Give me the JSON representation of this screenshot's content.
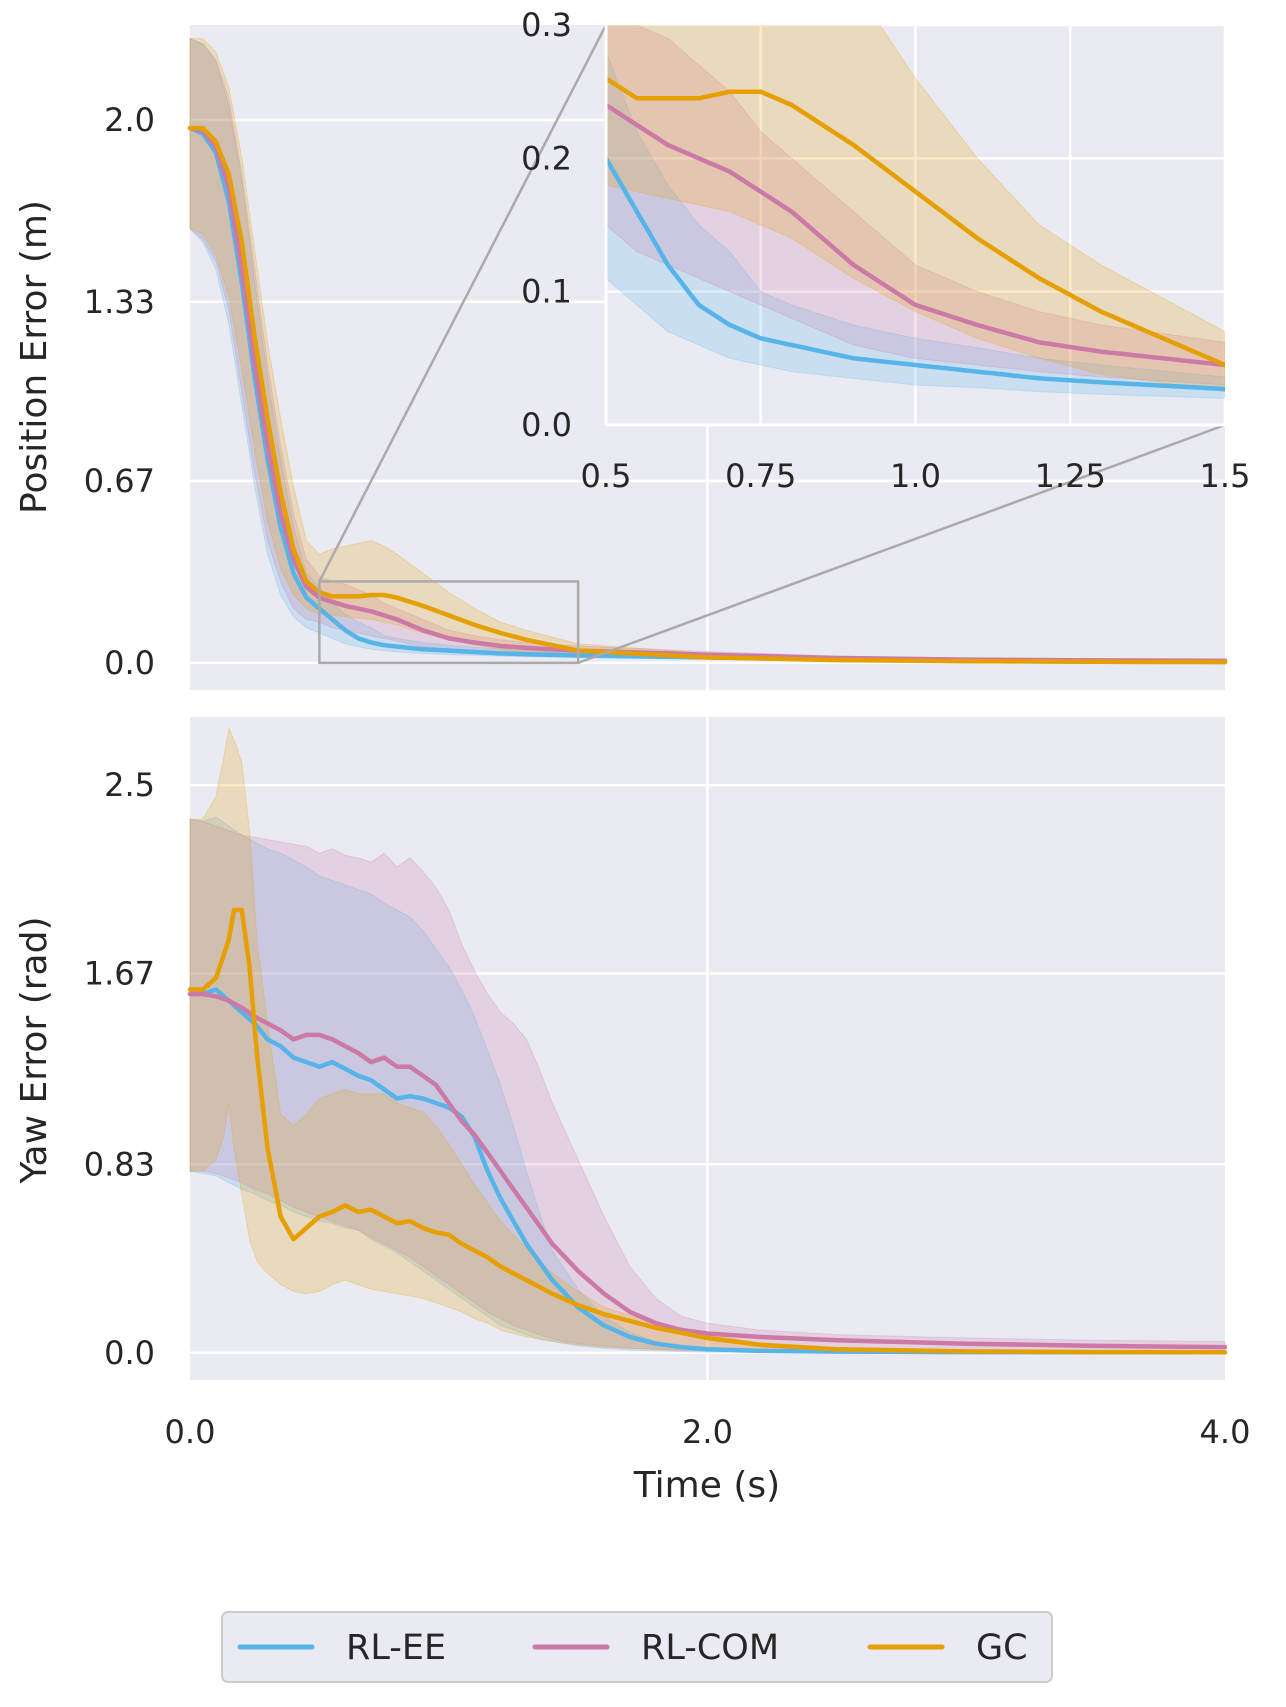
{
  "chart_data": [
    {
      "type": "line",
      "panel": "top",
      "ylabel": "Position Error (m)",
      "xlabel": "",
      "xlim": [
        0,
        4
      ],
      "ylim": [
        -0.1,
        2.35
      ],
      "yticks": [
        "2.0",
        "1.33",
        "0.67",
        "0.0"
      ],
      "ytick_values": [
        2.0,
        1.33,
        0.67,
        0.0
      ],
      "grid": true,
      "series": [
        {
          "name": "RL-EE",
          "color": "#56B4E9",
          "x": [
            0,
            0.05,
            0.1,
            0.15,
            0.2,
            0.25,
            0.3,
            0.35,
            0.4,
            0.45,
            0.5,
            0.55,
            0.6,
            0.65,
            0.7,
            0.75,
            0.8,
            0.9,
            1.0,
            1.1,
            1.2,
            1.3,
            1.5,
            2.0,
            2.5,
            3.0,
            3.5,
            4.0
          ],
          "y": [
            1.97,
            1.95,
            1.88,
            1.7,
            1.4,
            1.05,
            0.75,
            0.5,
            0.33,
            0.24,
            0.2,
            0.16,
            0.12,
            0.09,
            0.075,
            0.065,
            0.06,
            0.05,
            0.045,
            0.04,
            0.035,
            0.032,
            0.027,
            0.02,
            0.012,
            0.007,
            0.004,
            0.003
          ],
          "lower": [
            1.6,
            1.55,
            1.45,
            1.25,
            0.95,
            0.65,
            0.4,
            0.25,
            0.17,
            0.13,
            0.11,
            0.09,
            0.07,
            0.06,
            0.05,
            0.045,
            0.04,
            0.035,
            0.03,
            0.028,
            0.025,
            0.023,
            0.02,
            0.015,
            0.008,
            0.004,
            0.002,
            0.001
          ],
          "upper": [
            2.3,
            2.28,
            2.22,
            2.05,
            1.78,
            1.4,
            1.05,
            0.75,
            0.5,
            0.33,
            0.28,
            0.22,
            0.18,
            0.15,
            0.13,
            0.1,
            0.09,
            0.075,
            0.065,
            0.058,
            0.05,
            0.045,
            0.036,
            0.026,
            0.016,
            0.01,
            0.006,
            0.005
          ]
        },
        {
          "name": "RL-COM",
          "color": "#CC79A7",
          "x": [
            0,
            0.05,
            0.1,
            0.15,
            0.2,
            0.25,
            0.3,
            0.35,
            0.4,
            0.45,
            0.5,
            0.55,
            0.6,
            0.65,
            0.7,
            0.75,
            0.8,
            0.9,
            1.0,
            1.1,
            1.2,
            1.3,
            1.5,
            2.0,
            2.5,
            3.0,
            3.5,
            4.0
          ],
          "y": [
            1.97,
            1.96,
            1.9,
            1.75,
            1.45,
            1.1,
            0.8,
            0.55,
            0.38,
            0.28,
            0.24,
            0.225,
            0.21,
            0.2,
            0.19,
            0.175,
            0.16,
            0.12,
            0.09,
            0.075,
            0.062,
            0.055,
            0.045,
            0.03,
            0.018,
            0.012,
            0.009,
            0.008
          ],
          "lower": [
            1.6,
            1.56,
            1.48,
            1.3,
            1.0,
            0.7,
            0.45,
            0.3,
            0.2,
            0.16,
            0.15,
            0.13,
            0.12,
            0.11,
            0.1,
            0.09,
            0.08,
            0.06,
            0.05,
            0.045,
            0.04,
            0.036,
            0.03,
            0.02,
            0.012,
            0.008,
            0.006,
            0.005
          ],
          "upper": [
            2.3,
            2.28,
            2.22,
            2.08,
            1.8,
            1.45,
            1.1,
            0.8,
            0.55,
            0.38,
            0.32,
            0.3,
            0.29,
            0.27,
            0.25,
            0.22,
            0.2,
            0.16,
            0.12,
            0.1,
            0.085,
            0.075,
            0.062,
            0.042,
            0.025,
            0.017,
            0.013,
            0.011
          ]
        },
        {
          "name": "GC",
          "color": "#E69F00",
          "x": [
            0,
            0.05,
            0.1,
            0.15,
            0.2,
            0.25,
            0.3,
            0.35,
            0.4,
            0.45,
            0.5,
            0.55,
            0.6,
            0.65,
            0.7,
            0.75,
            0.8,
            0.9,
            1.0,
            1.1,
            1.2,
            1.3,
            1.5,
            2.0,
            2.5,
            3.0,
            3.5,
            4.0
          ],
          "y": [
            1.97,
            1.97,
            1.92,
            1.8,
            1.55,
            1.2,
            0.9,
            0.63,
            0.42,
            0.3,
            0.26,
            0.245,
            0.245,
            0.245,
            0.25,
            0.25,
            0.24,
            0.21,
            0.175,
            0.14,
            0.11,
            0.085,
            0.045,
            0.02,
            0.01,
            0.006,
            0.004,
            0.003
          ],
          "lower": [
            1.6,
            1.58,
            1.5,
            1.35,
            1.08,
            0.78,
            0.52,
            0.35,
            0.25,
            0.2,
            0.18,
            0.175,
            0.17,
            0.165,
            0.16,
            0.15,
            0.14,
            0.11,
            0.085,
            0.065,
            0.05,
            0.038,
            0.025,
            0.012,
            0.006,
            0.004,
            0.002,
            0.001
          ],
          "upper": [
            2.3,
            2.3,
            2.25,
            2.12,
            1.86,
            1.52,
            1.18,
            0.9,
            0.65,
            0.45,
            0.4,
            0.42,
            0.43,
            0.44,
            0.45,
            0.43,
            0.4,
            0.33,
            0.26,
            0.2,
            0.15,
            0.12,
            0.07,
            0.035,
            0.02,
            0.012,
            0.008,
            0.006
          ]
        }
      ]
    },
    {
      "type": "line",
      "panel": "top-inset",
      "xlim": [
        0.5,
        1.5
      ],
      "ylim": [
        0.0,
        0.3
      ],
      "xticks": [
        "0.5",
        "0.75",
        "1.0",
        "1.25",
        "1.5"
      ],
      "xtick_values": [
        0.5,
        0.75,
        1.0,
        1.25,
        1.5
      ],
      "yticks": [
        "0.3",
        "0.2",
        "0.1",
        "0.0"
      ],
      "ytick_values": [
        0.3,
        0.2,
        0.1,
        0.0
      ],
      "zoom_region": {
        "x": [
          0.5,
          1.5
        ],
        "y": [
          0.0,
          0.3
        ]
      },
      "grid": true
    },
    {
      "type": "line",
      "panel": "bottom",
      "ylabel": "Yaw Error (rad)",
      "xlabel": "Time (s)",
      "xlim": [
        0,
        4
      ],
      "ylim": [
        -0.12,
        2.8
      ],
      "xticks": [
        "0.0",
        "2.0",
        "4.0"
      ],
      "xtick_values": [
        0,
        2,
        4
      ],
      "yticks": [
        "2.5",
        "1.67",
        "0.83",
        "0.0"
      ],
      "ytick_values": [
        2.5,
        1.67,
        0.83,
        0.0
      ],
      "grid": true,
      "series": [
        {
          "name": "RL-EE",
          "color": "#56B4E9",
          "x": [
            0,
            0.05,
            0.1,
            0.15,
            0.2,
            0.25,
            0.3,
            0.35,
            0.4,
            0.45,
            0.5,
            0.55,
            0.6,
            0.65,
            0.7,
            0.75,
            0.8,
            0.85,
            0.9,
            0.95,
            1.0,
            1.05,
            1.1,
            1.15,
            1.2,
            1.25,
            1.3,
            1.35,
            1.4,
            1.5,
            1.6,
            1.7,
            1.8,
            1.9,
            2.0,
            2.2,
            2.5,
            3.0,
            3.5,
            4.0
          ],
          "y": [
            1.58,
            1.58,
            1.6,
            1.55,
            1.5,
            1.45,
            1.38,
            1.35,
            1.3,
            1.28,
            1.26,
            1.28,
            1.25,
            1.22,
            1.2,
            1.16,
            1.12,
            1.13,
            1.12,
            1.1,
            1.08,
            1.04,
            0.95,
            0.8,
            0.68,
            0.58,
            0.48,
            0.4,
            0.32,
            0.2,
            0.12,
            0.07,
            0.04,
            0.025,
            0.015,
            0.008,
            0.005,
            0.003,
            0.002,
            0.002
          ],
          "lower": [
            0.8,
            0.79,
            0.78,
            0.75,
            0.72,
            0.7,
            0.67,
            0.65,
            0.62,
            0.6,
            0.58,
            0.57,
            0.55,
            0.54,
            0.5,
            0.47,
            0.44,
            0.4,
            0.36,
            0.32,
            0.28,
            0.24,
            0.2,
            0.16,
            0.12,
            0.1,
            0.08,
            0.06,
            0.05,
            0.03,
            0.02,
            0.012,
            0.008,
            0.005,
            0.003,
            0.002,
            0.001,
            0.001,
            0.0,
            0.0
          ],
          "upper": [
            2.35,
            2.34,
            2.36,
            2.32,
            2.28,
            2.25,
            2.22,
            2.2,
            2.17,
            2.14,
            2.1,
            2.08,
            2.06,
            2.04,
            2.02,
            1.98,
            1.95,
            1.92,
            1.86,
            1.78,
            1.7,
            1.6,
            1.48,
            1.33,
            1.18,
            1.0,
            0.8,
            0.62,
            0.45,
            0.28,
            0.16,
            0.09,
            0.05,
            0.03,
            0.02,
            0.012,
            0.008,
            0.005,
            0.004,
            0.004
          ]
        },
        {
          "name": "RL-COM",
          "color": "#CC79A7",
          "x": [
            0,
            0.05,
            0.1,
            0.15,
            0.2,
            0.25,
            0.3,
            0.35,
            0.4,
            0.45,
            0.5,
            0.55,
            0.6,
            0.65,
            0.7,
            0.75,
            0.8,
            0.85,
            0.9,
            0.95,
            1.0,
            1.05,
            1.1,
            1.15,
            1.2,
            1.25,
            1.3,
            1.35,
            1.4,
            1.5,
            1.6,
            1.7,
            1.8,
            1.9,
            2.0,
            2.2,
            2.5,
            3.0,
            3.5,
            4.0
          ],
          "y": [
            1.58,
            1.58,
            1.57,
            1.55,
            1.52,
            1.48,
            1.45,
            1.42,
            1.38,
            1.4,
            1.4,
            1.38,
            1.35,
            1.32,
            1.28,
            1.3,
            1.26,
            1.26,
            1.22,
            1.18,
            1.1,
            1.02,
            0.96,
            0.88,
            0.8,
            0.72,
            0.64,
            0.56,
            0.48,
            0.36,
            0.26,
            0.18,
            0.13,
            0.1,
            0.085,
            0.07,
            0.055,
            0.04,
            0.03,
            0.025
          ],
          "lower": [
            0.8,
            0.8,
            0.79,
            0.77,
            0.75,
            0.72,
            0.7,
            0.67,
            0.64,
            0.62,
            0.6,
            0.58,
            0.56,
            0.54,
            0.51,
            0.48,
            0.45,
            0.42,
            0.38,
            0.34,
            0.3,
            0.26,
            0.22,
            0.18,
            0.15,
            0.12,
            0.1,
            0.08,
            0.06,
            0.04,
            0.03,
            0.02,
            0.015,
            0.01,
            0.008,
            0.005,
            0.003,
            0.002,
            0.001,
            0.001
          ],
          "upper": [
            2.35,
            2.34,
            2.32,
            2.3,
            2.28,
            2.27,
            2.26,
            2.25,
            2.24,
            2.23,
            2.2,
            2.22,
            2.19,
            2.18,
            2.16,
            2.2,
            2.14,
            2.18,
            2.12,
            2.05,
            1.95,
            1.8,
            1.68,
            1.58,
            1.5,
            1.45,
            1.38,
            1.25,
            1.1,
            0.85,
            0.6,
            0.38,
            0.24,
            0.16,
            0.13,
            0.1,
            0.08,
            0.065,
            0.055,
            0.05
          ]
        },
        {
          "name": "GC",
          "color": "#E69F00",
          "x": [
            0,
            0.05,
            0.1,
            0.13,
            0.15,
            0.17,
            0.2,
            0.23,
            0.26,
            0.3,
            0.35,
            0.4,
            0.45,
            0.5,
            0.55,
            0.6,
            0.65,
            0.7,
            0.75,
            0.8,
            0.85,
            0.9,
            0.95,
            1.0,
            1.05,
            1.1,
            1.15,
            1.2,
            1.3,
            1.4,
            1.5,
            1.6,
            1.8,
            2.0,
            2.2,
            2.5,
            3.0,
            3.5,
            4.0
          ],
          "y": [
            1.6,
            1.6,
            1.65,
            1.75,
            1.82,
            1.95,
            1.95,
            1.7,
            1.3,
            0.9,
            0.6,
            0.5,
            0.55,
            0.6,
            0.62,
            0.65,
            0.62,
            0.63,
            0.6,
            0.57,
            0.58,
            0.55,
            0.53,
            0.52,
            0.48,
            0.45,
            0.42,
            0.38,
            0.32,
            0.26,
            0.21,
            0.17,
            0.11,
            0.065,
            0.035,
            0.015,
            0.006,
            0.003,
            0.002
          ],
          "lower": [
            0.8,
            0.8,
            0.85,
            0.95,
            1.1,
            0.9,
            0.7,
            0.5,
            0.4,
            0.35,
            0.3,
            0.27,
            0.26,
            0.27,
            0.3,
            0.32,
            0.3,
            0.28,
            0.27,
            0.26,
            0.25,
            0.24,
            0.22,
            0.2,
            0.18,
            0.15,
            0.13,
            0.1,
            0.07,
            0.05,
            0.035,
            0.025,
            0.015,
            0.008,
            0.005,
            0.003,
            0.001,
            0.0,
            0.0
          ],
          "upper": [
            2.35,
            2.35,
            2.45,
            2.62,
            2.75,
            2.7,
            2.6,
            2.3,
            1.8,
            1.45,
            1.05,
            1.0,
            1.05,
            1.12,
            1.14,
            1.16,
            1.14,
            1.14,
            1.14,
            1.1,
            1.08,
            1.06,
            1.0,
            0.92,
            0.83,
            0.74,
            0.66,
            0.58,
            0.46,
            0.35,
            0.27,
            0.2,
            0.13,
            0.08,
            0.045,
            0.022,
            0.01,
            0.006,
            0.004
          ]
        }
      ]
    }
  ],
  "legend": {
    "position": "bottom-center",
    "items": [
      {
        "label": "RL-EE",
        "color": "#56B4E9"
      },
      {
        "label": "RL-COM",
        "color": "#CC79A7"
      },
      {
        "label": "GC",
        "color": "#E69F00"
      }
    ]
  },
  "style": {
    "panel_background": "#EAEAF2",
    "grid_color": "#FFFFFF",
    "zoom_box_color": "#AAAAAA"
  }
}
